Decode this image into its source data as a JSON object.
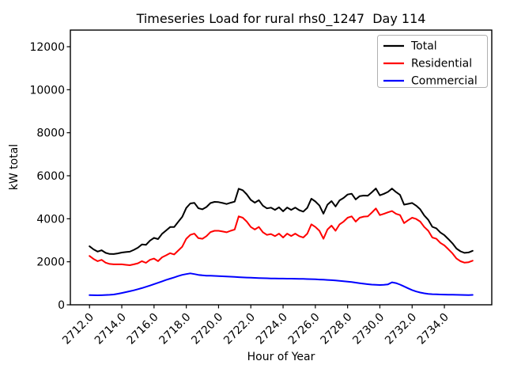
{
  "title": "Timeseries Load for rural rhs0_1247  Day 114",
  "chart_data": {
    "type": "line",
    "title": "Timeseries Load for rural rhs0_1247  Day 114",
    "xlabel": "Hour of Year",
    "ylabel": "kW total",
    "grid": false,
    "legend_position": "upper right",
    "background": "#ffffff",
    "xlim": [
      2710.8125,
      2736.9375
    ],
    "ylim": [
      0,
      12773
    ],
    "x_ticks": [
      2712,
      2714,
      2716,
      2718,
      2720,
      2722,
      2724,
      2726,
      2728,
      2730,
      2732,
      2734
    ],
    "x_tick_labels": [
      "2712.0",
      "2714.0",
      "2716.0",
      "2718.0",
      "2720.0",
      "2722.0",
      "2724.0",
      "2726.0",
      "2728.0",
      "2730.0",
      "2732.0",
      "2734.0"
    ],
    "y_ticks": [
      0,
      2000,
      4000,
      6000,
      8000,
      10000,
      12000
    ],
    "y_tick_labels": [
      "0",
      "2000",
      "4000",
      "6000",
      "8000",
      "10000",
      "12000"
    ],
    "x": [
      2712.0,
      2712.25,
      2712.5,
      2712.75,
      2713.0,
      2713.25,
      2713.5,
      2713.75,
      2714.0,
      2714.25,
      2714.5,
      2714.75,
      2715.0,
      2715.25,
      2715.5,
      2715.75,
      2716.0,
      2716.25,
      2716.5,
      2716.75,
      2717.0,
      2717.25,
      2717.5,
      2717.75,
      2718.0,
      2718.25,
      2718.5,
      2718.75,
      2719.0,
      2719.25,
      2719.5,
      2719.75,
      2720.0,
      2720.25,
      2720.5,
      2720.75,
      2721.0,
      2721.25,
      2721.5,
      2721.75,
      2722.0,
      2722.25,
      2722.5,
      2722.75,
      2723.0,
      2723.25,
      2723.5,
      2723.75,
      2724.0,
      2724.25,
      2724.5,
      2724.75,
      2725.0,
      2725.25,
      2725.5,
      2725.75,
      2726.0,
      2726.25,
      2726.5,
      2726.75,
      2727.0,
      2727.25,
      2727.5,
      2727.75,
      2728.0,
      2728.25,
      2728.5,
      2728.75,
      2729.0,
      2729.25,
      2729.5,
      2729.75,
      2730.0,
      2730.25,
      2730.5,
      2730.75,
      2731.0,
      2731.25,
      2731.5,
      2731.75,
      2732.0,
      2732.25,
      2732.5,
      2732.75,
      2733.0,
      2733.25,
      2733.5,
      2733.75,
      2734.0,
      2734.25,
      2734.5,
      2734.75,
      2735.0,
      2735.25,
      2735.5,
      2735.75
    ],
    "series": [
      {
        "name": "Total",
        "color": "#000000",
        "values": [
          2720,
          2575,
          2472,
          2535,
          2415,
          2365,
          2360,
          2390,
          2430,
          2450,
          2470,
          2555,
          2655,
          2805,
          2785,
          2985,
          3110,
          3055,
          3300,
          3455,
          3615,
          3615,
          3855,
          4090,
          4500,
          4710,
          4740,
          4490,
          4440,
          4545,
          4730,
          4785,
          4775,
          4735,
          4685,
          4745,
          4795,
          5395,
          5325,
          5135,
          4878,
          4750,
          4863,
          4607,
          4482,
          4517,
          4413,
          4530,
          4348,
          4525,
          4413,
          4520,
          4397,
          4333,
          4508,
          4932,
          4805,
          4616,
          4236,
          4655,
          4823,
          4570,
          4855,
          4968,
          5128,
          5165,
          4900,
          5055,
          5080,
          5068,
          5230,
          5408,
          5092,
          5160,
          5250,
          5405,
          5240,
          5110,
          4655,
          4695,
          4735,
          4610,
          4440,
          4152,
          3948,
          3624,
          3556,
          3360,
          3235,
          3051,
          2857,
          2613,
          2484,
          2416,
          2433,
          2510
        ]
      },
      {
        "name": "Residential",
        "color": "#ff0000",
        "values": [
          2270,
          2130,
          2030,
          2090,
          1960,
          1900,
          1880,
          1880,
          1880,
          1860,
          1840,
          1880,
          1930,
          2030,
          1950,
          2090,
          2150,
          2030,
          2210,
          2300,
          2400,
          2340,
          2520,
          2700,
          3070,
          3250,
          3310,
          3100,
          3070,
          3190,
          3380,
          3440,
          3440,
          3410,
          3370,
          3440,
          3500,
          4110,
          4050,
          3870,
          3620,
          3500,
          3620,
          3370,
          3250,
          3290,
          3190,
          3310,
          3130,
          3310,
          3200,
          3310,
          3190,
          3130,
          3310,
          3740,
          3620,
          3440,
          3070,
          3500,
          3680,
          3440,
          3740,
          3870,
          4050,
          4110,
          3870,
          4050,
          4100,
          4110,
          4290,
          4480,
          4170,
          4230,
          4300,
          4360,
          4230,
          4170,
          3800,
          3930,
          4050,
          3990,
          3870,
          3620,
          3440,
          3130,
          3070,
          2880,
          2760,
          2580,
          2390,
          2150,
          2025,
          1960,
          1980,
          2050
        ]
      },
      {
        "name": "Commercial",
        "color": "#0000ff",
        "values": [
          450,
          445,
          442,
          445,
          455,
          465,
          480,
          510,
          550,
          590,
          630,
          675,
          725,
          775,
          835,
          895,
          960,
          1025,
          1090,
          1155,
          1215,
          1275,
          1335,
          1390,
          1430,
          1460,
          1430,
          1390,
          1370,
          1355,
          1350,
          1345,
          1335,
          1325,
          1315,
          1305,
          1295,
          1285,
          1275,
          1265,
          1258,
          1250,
          1243,
          1237,
          1232,
          1227,
          1223,
          1220,
          1218,
          1215,
          1213,
          1210,
          1207,
          1203,
          1198,
          1192,
          1185,
          1176,
          1166,
          1155,
          1143,
          1130,
          1115,
          1098,
          1078,
          1055,
          1030,
          1005,
          980,
          958,
          940,
          928,
          922,
          930,
          950,
          1045,
          1010,
          940,
          855,
          765,
          685,
          620,
          570,
          532,
          508,
          494,
          486,
          480,
          475,
          471,
          467,
          463,
          459,
          456,
          453,
          460
        ]
      }
    ]
  }
}
